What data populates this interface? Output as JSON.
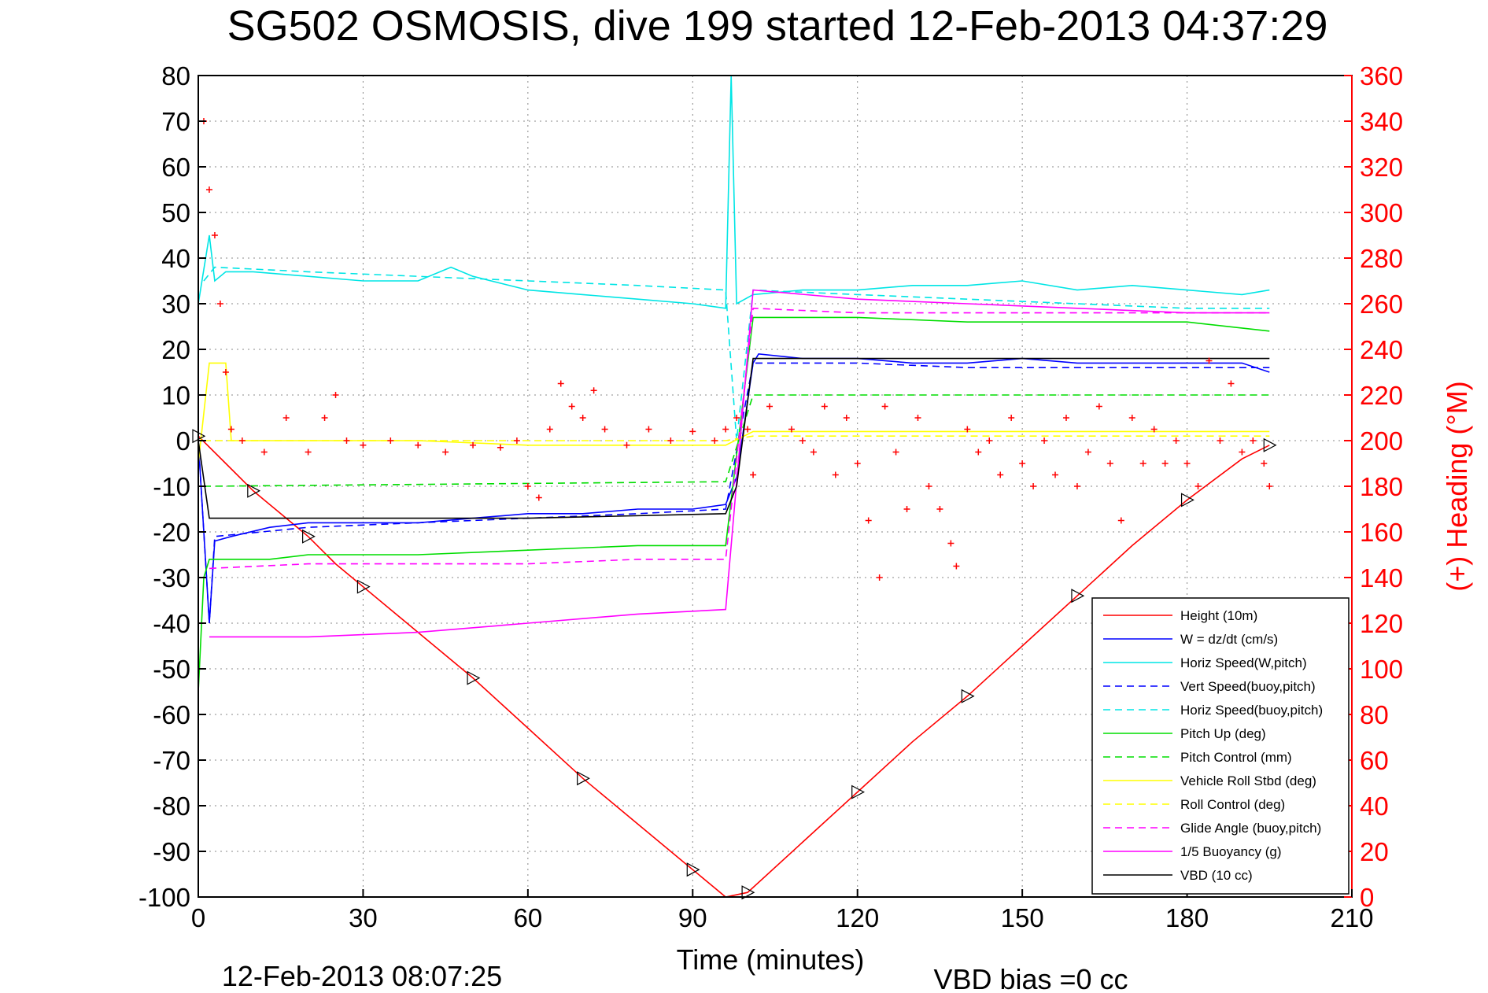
{
  "chart_data": {
    "type": "line",
    "title": "SG502 OSMOSIS, dive 199 started 12-Feb-2013 04:37:29",
    "xlabel": "Time (minutes)",
    "ylabel_right": "(+) Heading (°M)",
    "footer_timestamp": "12-Feb-2013 08:07:25",
    "footer_note": "VBD bias =0 cc",
    "xlim": [
      0,
      210
    ],
    "ylim_left": [
      -100,
      80
    ],
    "ylim_right": [
      0,
      360
    ],
    "xticks": [
      "0",
      "30",
      "60",
      "90",
      "120",
      "150",
      "180",
      "210"
    ],
    "yticks_left": [
      "80",
      "70",
      "60",
      "50",
      "40",
      "30",
      "20",
      "10",
      "0",
      "-10",
      "-20",
      "-30",
      "-40",
      "-50",
      "-60",
      "-70",
      "-80",
      "-90",
      "-100"
    ],
    "yticks_right": [
      "360",
      "340",
      "320",
      "300",
      "280",
      "260",
      "240",
      "220",
      "200",
      "180",
      "160",
      "140",
      "120",
      "100",
      "80",
      "60",
      "40",
      "20",
      "0"
    ],
    "grid": true,
    "legend_position": "bottom-right",
    "colors": {
      "height": "#ff0000",
      "w": "#0000ff",
      "horiz_speed": "#00e5e5",
      "pitch": "#00dd00",
      "roll": "#ffff00",
      "glide": "#ff00ff",
      "vbd": "#000000",
      "heading": "#ff0000"
    },
    "series": [
      {
        "name": "Height (10m)",
        "color": "#ff0000",
        "dash": false,
        "points": [
          [
            0,
            1
          ],
          [
            5,
            -5
          ],
          [
            10,
            -11
          ],
          [
            15,
            -16
          ],
          [
            20,
            -21
          ],
          [
            25,
            -27
          ],
          [
            30,
            -32
          ],
          [
            40,
            -42
          ],
          [
            50,
            -52
          ],
          [
            60,
            -63
          ],
          [
            70,
            -74
          ],
          [
            80,
            -84
          ],
          [
            90,
            -94
          ],
          [
            96,
            -100
          ],
          [
            100,
            -99
          ],
          [
            110,
            -88
          ],
          [
            120,
            -77
          ],
          [
            130,
            -66
          ],
          [
            140,
            -56
          ],
          [
            150,
            -45
          ],
          [
            160,
            -34
          ],
          [
            170,
            -23
          ],
          [
            180,
            -13
          ],
          [
            190,
            -4
          ],
          [
            195,
            -1
          ]
        ]
      },
      {
        "name": "W = dz/dt (cm/s)",
        "color": "#0000ff",
        "dash": false,
        "points": [
          [
            0,
            0
          ],
          [
            1,
            -20
          ],
          [
            2,
            -40
          ],
          [
            3,
            -22
          ],
          [
            6,
            -21
          ],
          [
            13,
            -19
          ],
          [
            20,
            -18
          ],
          [
            30,
            -18
          ],
          [
            40,
            -18
          ],
          [
            50,
            -17
          ],
          [
            60,
            -16
          ],
          [
            70,
            -16
          ],
          [
            80,
            -15
          ],
          [
            90,
            -15
          ],
          [
            96,
            -14
          ],
          [
            98,
            -8
          ],
          [
            101,
            17
          ],
          [
            102,
            19
          ],
          [
            110,
            18
          ],
          [
            120,
            18
          ],
          [
            130,
            17
          ],
          [
            140,
            17
          ],
          [
            150,
            18
          ],
          [
            160,
            17
          ],
          [
            170,
            17
          ],
          [
            180,
            17
          ],
          [
            190,
            17
          ],
          [
            195,
            15
          ]
        ]
      },
      {
        "name": "Horiz Speed(W,pitch)",
        "color": "#00e5e5",
        "dash": false,
        "points": [
          [
            0,
            30
          ],
          [
            2,
            45
          ],
          [
            3,
            35
          ],
          [
            5,
            37
          ],
          [
            10,
            37
          ],
          [
            20,
            36
          ],
          [
            30,
            35
          ],
          [
            40,
            35
          ],
          [
            46,
            38
          ],
          [
            50,
            36
          ],
          [
            60,
            33
          ],
          [
            70,
            32
          ],
          [
            80,
            31
          ],
          [
            90,
            30
          ],
          [
            96,
            29
          ],
          [
            97,
            80
          ],
          [
            98,
            30
          ],
          [
            101,
            32
          ],
          [
            110,
            33
          ],
          [
            120,
            33
          ],
          [
            130,
            34
          ],
          [
            140,
            34
          ],
          [
            150,
            35
          ],
          [
            160,
            33
          ],
          [
            170,
            34
          ],
          [
            180,
            33
          ],
          [
            190,
            32
          ],
          [
            195,
            33
          ]
        ]
      },
      {
        "name": "Vert Speed(buoy,pitch)",
        "color": "#0000ff",
        "dash": true,
        "points": [
          [
            0,
            0
          ],
          [
            2,
            -40
          ],
          [
            3,
            -21
          ],
          [
            20,
            -19
          ],
          [
            40,
            -18
          ],
          [
            60,
            -17
          ],
          [
            80,
            -16
          ],
          [
            96,
            -15
          ],
          [
            101,
            17
          ],
          [
            120,
            17
          ],
          [
            140,
            16
          ],
          [
            160,
            16
          ],
          [
            180,
            16
          ],
          [
            195,
            16
          ]
        ]
      },
      {
        "name": "Horiz Speed(buoy,pitch)",
        "color": "#00e5e5",
        "dash": true,
        "points": [
          [
            1,
            35
          ],
          [
            3,
            38
          ],
          [
            20,
            37
          ],
          [
            40,
            36
          ],
          [
            60,
            35
          ],
          [
            80,
            34
          ],
          [
            96,
            33
          ],
          [
            98,
            0
          ],
          [
            101,
            33
          ],
          [
            120,
            32
          ],
          [
            140,
            31
          ],
          [
            160,
            30
          ],
          [
            180,
            29
          ],
          [
            195,
            29
          ]
        ]
      },
      {
        "name": "Pitch Up (deg)",
        "color": "#00dd00",
        "dash": false,
        "points": [
          [
            0,
            -55
          ],
          [
            1,
            -30
          ],
          [
            2,
            -26
          ],
          [
            13,
            -26
          ],
          [
            20,
            -25
          ],
          [
            40,
            -25
          ],
          [
            60,
            -24
          ],
          [
            80,
            -23
          ],
          [
            96,
            -23
          ],
          [
            101,
            27
          ],
          [
            120,
            27
          ],
          [
            140,
            26
          ],
          [
            160,
            26
          ],
          [
            180,
            26
          ],
          [
            195,
            24
          ]
        ]
      },
      {
        "name": "Pitch Control (mm)",
        "color": "#00dd00",
        "dash": true,
        "points": [
          [
            1,
            -10
          ],
          [
            96,
            -9
          ],
          [
            101,
            10
          ],
          [
            195,
            10
          ]
        ]
      },
      {
        "name": "Vehicle Roll Stbd (deg)",
        "color": "#ffff00",
        "dash": false,
        "points": [
          [
            0,
            -5
          ],
          [
            2,
            17
          ],
          [
            5,
            17
          ],
          [
            6,
            0
          ],
          [
            20,
            0
          ],
          [
            40,
            0
          ],
          [
            60,
            -1
          ],
          [
            80,
            -1
          ],
          [
            96,
            -1
          ],
          [
            101,
            2
          ],
          [
            120,
            2
          ],
          [
            140,
            2
          ],
          [
            160,
            2
          ],
          [
            180,
            2
          ],
          [
            195,
            2
          ]
        ]
      },
      {
        "name": "Roll Control (deg)",
        "color": "#ffff00",
        "dash": true,
        "points": [
          [
            1,
            0
          ],
          [
            6,
            0
          ],
          [
            40,
            0
          ],
          [
            96,
            0
          ],
          [
            101,
            1
          ],
          [
            150,
            1
          ],
          [
            195,
            1
          ]
        ]
      },
      {
        "name": "Glide Angle (buoy,pitch)",
        "color": "#ff00ff",
        "dash": true,
        "points": [
          [
            2,
            -28
          ],
          [
            20,
            -27
          ],
          [
            40,
            -27
          ],
          [
            60,
            -27
          ],
          [
            80,
            -26
          ],
          [
            96,
            -26
          ],
          [
            101,
            29
          ],
          [
            120,
            28
          ],
          [
            140,
            28
          ],
          [
            160,
            28
          ],
          [
            180,
            28
          ],
          [
            195,
            28
          ]
        ]
      },
      {
        "name": "1/5 Buoyancy (g)",
        "color": "#ff00ff",
        "dash": false,
        "points": [
          [
            2,
            -43
          ],
          [
            20,
            -43
          ],
          [
            40,
            -42
          ],
          [
            60,
            -40
          ],
          [
            80,
            -38
          ],
          [
            96,
            -37
          ],
          [
            101,
            33
          ],
          [
            120,
            31
          ],
          [
            140,
            30
          ],
          [
            160,
            29
          ],
          [
            180,
            28
          ],
          [
            195,
            28
          ]
        ]
      },
      {
        "name": "VBD (10 cc)",
        "color": "#000000",
        "dash": false,
        "points": [
          [
            0,
            0
          ],
          [
            2,
            -17
          ],
          [
            30,
            -17
          ],
          [
            60,
            -17
          ],
          [
            96,
            -16
          ],
          [
            98,
            -10
          ],
          [
            101,
            18
          ],
          [
            130,
            18
          ],
          [
            160,
            18
          ],
          [
            195,
            18
          ]
        ]
      }
    ],
    "heading_series": {
      "marker": "+",
      "color": "#ff0000",
      "points": [
        [
          1,
          340
        ],
        [
          2,
          310
        ],
        [
          3,
          290
        ],
        [
          4,
          260
        ],
        [
          5,
          230
        ],
        [
          6,
          205
        ],
        [
          8,
          200
        ],
        [
          12,
          195
        ],
        [
          16,
          210
        ],
        [
          20,
          195
        ],
        [
          23,
          210
        ],
        [
          25,
          220
        ],
        [
          27,
          200
        ],
        [
          30,
          198
        ],
        [
          35,
          200
        ],
        [
          40,
          198
        ],
        [
          45,
          195
        ],
        [
          50,
          198
        ],
        [
          55,
          197
        ],
        [
          58,
          200
        ],
        [
          60,
          180
        ],
        [
          62,
          175
        ],
        [
          64,
          205
        ],
        [
          66,
          225
        ],
        [
          68,
          215
        ],
        [
          70,
          210
        ],
        [
          72,
          222
        ],
        [
          74,
          205
        ],
        [
          78,
          198
        ],
        [
          82,
          205
        ],
        [
          86,
          200
        ],
        [
          90,
          204
        ],
        [
          94,
          200
        ],
        [
          96,
          205
        ],
        [
          98,
          210
        ],
        [
          100,
          205
        ],
        [
          101,
          185
        ],
        [
          104,
          215
        ],
        [
          108,
          205
        ],
        [
          110,
          200
        ],
        [
          112,
          195
        ],
        [
          114,
          215
        ],
        [
          116,
          185
        ],
        [
          118,
          210
        ],
        [
          120,
          190
        ],
        [
          122,
          165
        ],
        [
          124,
          140
        ],
        [
          125,
          215
        ],
        [
          127,
          195
        ],
        [
          129,
          170
        ],
        [
          131,
          210
        ],
        [
          133,
          180
        ],
        [
          135,
          170
        ],
        [
          137,
          155
        ],
        [
          138,
          145
        ],
        [
          140,
          205
        ],
        [
          142,
          195
        ],
        [
          144,
          200
        ],
        [
          146,
          185
        ],
        [
          148,
          210
        ],
        [
          150,
          190
        ],
        [
          152,
          180
        ],
        [
          154,
          200
        ],
        [
          156,
          185
        ],
        [
          158,
          210
        ],
        [
          160,
          180
        ],
        [
          162,
          195
        ],
        [
          164,
          215
        ],
        [
          166,
          190
        ],
        [
          168,
          165
        ],
        [
          170,
          210
        ],
        [
          172,
          190
        ],
        [
          174,
          205
        ],
        [
          176,
          190
        ],
        [
          178,
          200
        ],
        [
          180,
          190
        ],
        [
          182,
          180
        ],
        [
          184,
          235
        ],
        [
          186,
          200
        ],
        [
          188,
          225
        ],
        [
          190,
          195
        ],
        [
          192,
          200
        ],
        [
          194,
          190
        ],
        [
          195,
          180
        ]
      ]
    }
  }
}
